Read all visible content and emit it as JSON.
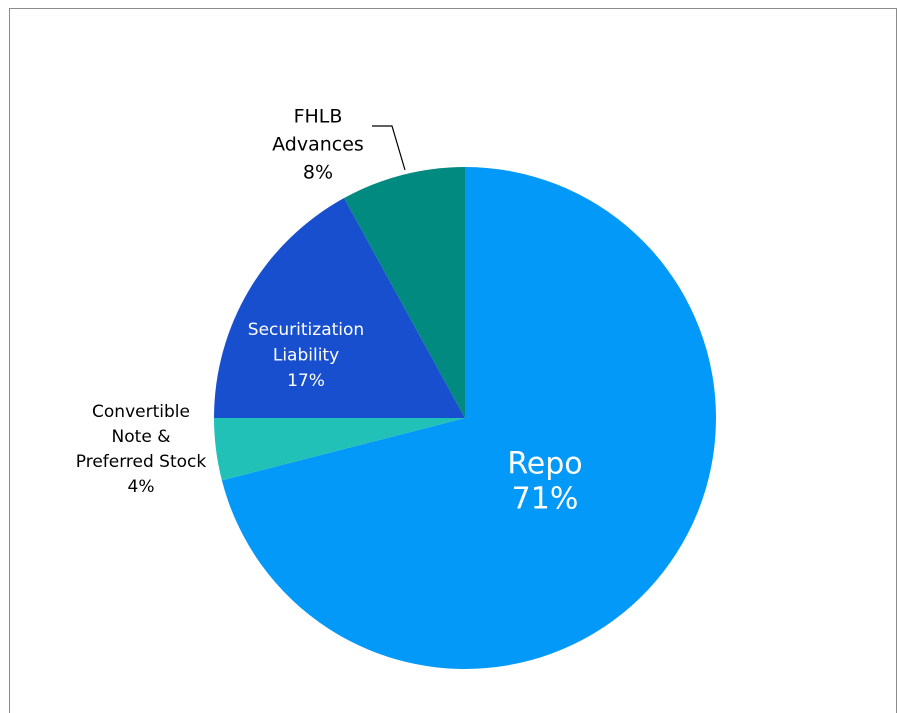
{
  "chart_data": {
    "type": "pie",
    "categories": [
      [
        "Repo"
      ],
      [
        "Convertible",
        "Note &",
        "Preferred Stock"
      ],
      [
        "Securitization",
        "Liability"
      ],
      [
        "FHLB",
        "Advances"
      ]
    ],
    "values": [
      71,
      4,
      17,
      8
    ],
    "value_labels": [
      "71%",
      "4%",
      "17%",
      "8%"
    ],
    "colors": [
      "#0399f8",
      "#22c1b8",
      "#184fcf",
      "#018a80"
    ]
  }
}
